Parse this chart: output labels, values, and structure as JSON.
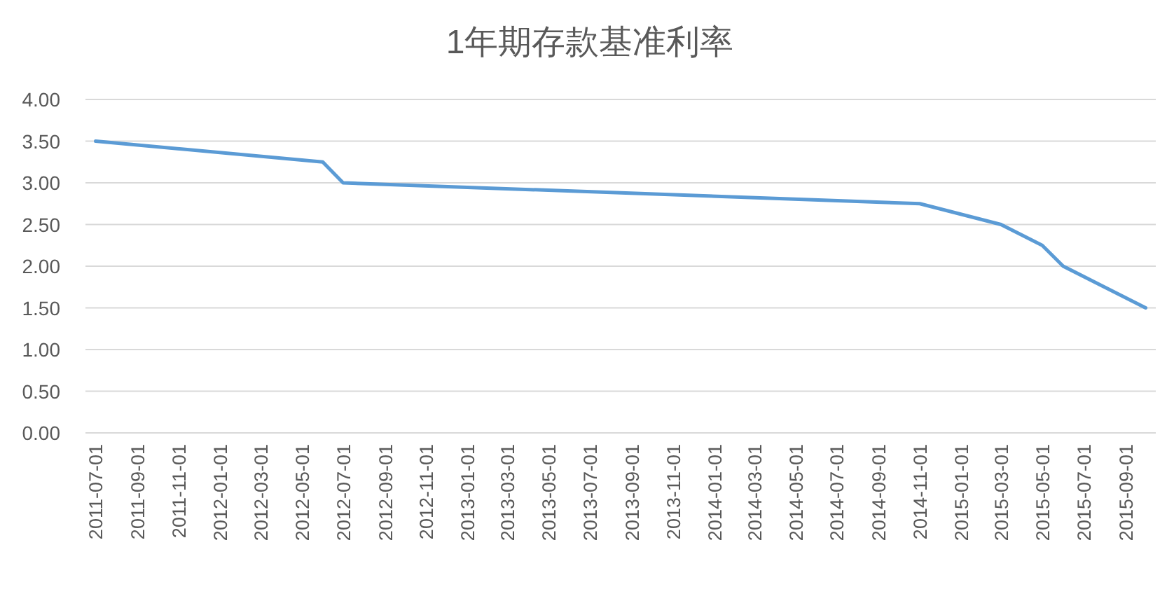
{
  "chart_data": {
    "type": "line",
    "title": "1年期存款基准利率",
    "x": [
      "2011-07-01",
      "2012-06-01",
      "2012-07-01",
      "2014-11-01",
      "2015-03-01",
      "2015-05-01",
      "2015-06-01",
      "2015-08-01",
      "2015-10-01"
    ],
    "series": [
      {
        "color": "#5b9bd5",
        "values": [
          3.5,
          3.25,
          3.0,
          2.75,
          2.5,
          2.25,
          2.0,
          1.75,
          1.5
        ]
      }
    ],
    "xlim": [
      "2011-06-16",
      "2015-10-16"
    ],
    "xticks": [
      "2011-07-01",
      "2011-09-01",
      "2011-11-01",
      "2012-01-01",
      "2012-03-01",
      "2012-05-01",
      "2012-07-01",
      "2012-09-01",
      "2012-11-01",
      "2013-01-01",
      "2013-03-01",
      "2013-05-01",
      "2013-07-01",
      "2013-09-01",
      "2013-11-01",
      "2014-01-01",
      "2014-03-01",
      "2014-05-01",
      "2014-07-01",
      "2014-09-01",
      "2014-11-01",
      "2015-01-01",
      "2015-03-01",
      "2015-05-01",
      "2015-07-01",
      "2015-09-01"
    ],
    "ylim": [
      0,
      4
    ],
    "yticks": [
      {
        "value": 0,
        "label": "0.00"
      },
      {
        "value": 0.5,
        "label": "0.50"
      },
      {
        "value": 1,
        "label": "1.00"
      },
      {
        "value": 1.5,
        "label": "1.50"
      },
      {
        "value": 2,
        "label": "2.00"
      },
      {
        "value": 2.5,
        "label": "2.50"
      },
      {
        "value": 3,
        "label": "3.00"
      },
      {
        "value": 3.5,
        "label": "3.50"
      },
      {
        "value": 4,
        "label": "4.00"
      }
    ],
    "grid": "y",
    "marker": "none",
    "line_style": "solid"
  }
}
